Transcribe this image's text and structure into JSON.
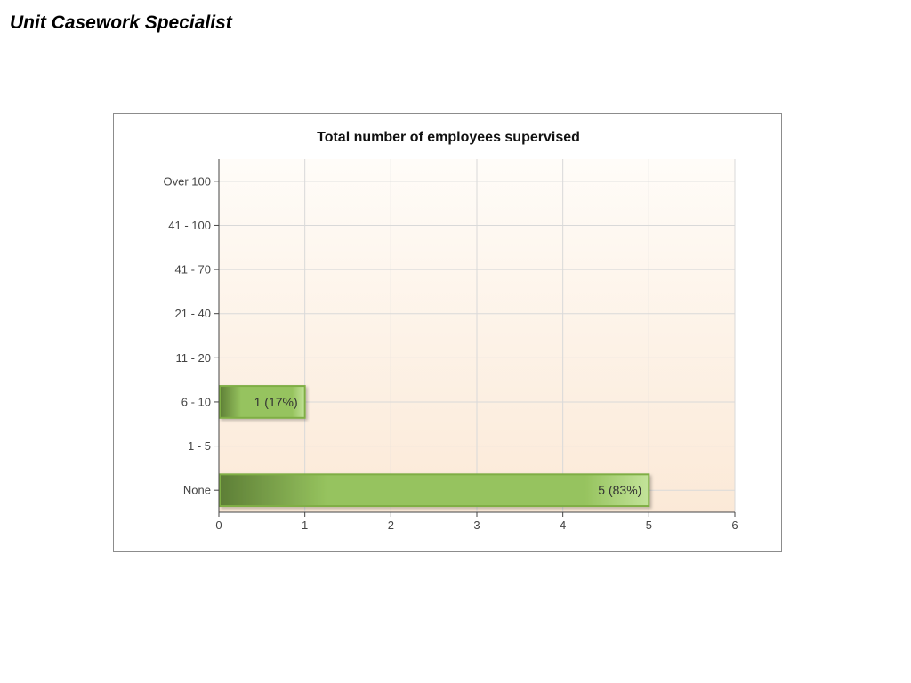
{
  "page": {
    "heading": "Unit Casework Specialist"
  },
  "chart_data": {
    "type": "bar",
    "orientation": "horizontal",
    "title": "Total number of employees supervised",
    "xlabel": "",
    "ylabel": "",
    "categories": [
      "Over 100",
      "41 - 100",
      "41 - 70",
      "21 - 40",
      "11 - 20",
      "6 - 10",
      "1 - 5",
      "None"
    ],
    "values": [
      0,
      0,
      0,
      0,
      0,
      1,
      0,
      5
    ],
    "data_labels": [
      "",
      "",
      "",
      "",
      "",
      "1 (17%)",
      "",
      "5 (83%)"
    ],
    "xlim": [
      0,
      6
    ],
    "xticks": [
      0,
      1,
      2,
      3,
      4,
      5,
      6
    ],
    "grid": true,
    "legend": "none",
    "colors": {
      "bar_dark": "#5d7e36",
      "bar_mid": "#96c35e",
      "bar_light": "#c3e39a",
      "bar_border": "#7fae45",
      "plot_bg_top": "#fffcf8",
      "plot_bg_bottom": "#fbe9d7",
      "grid": "#d9d9d9"
    }
  }
}
